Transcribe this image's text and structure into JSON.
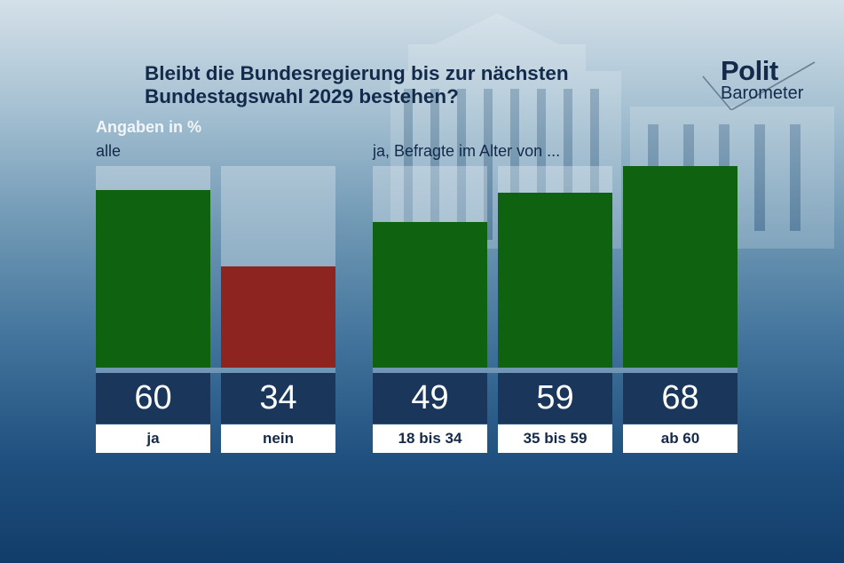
{
  "title_line1": "Bleibt die Bundesregierung bis zur nächsten",
  "title_line2": "Bundestagswahl 2029 bestehen?",
  "units_label": "Angaben in %",
  "logo": {
    "line1": "Polit",
    "line2": "Barometer"
  },
  "colors": {
    "green": "#0e6210",
    "red": "#8e2420",
    "navy": "#1a365b"
  },
  "chart_data": [
    {
      "type": "bar",
      "title": "alle",
      "categories": [
        "ja",
        "nein"
      ],
      "values": [
        60,
        34
      ],
      "value_labels": [
        "60",
        "34"
      ],
      "colors": [
        "#0e6210",
        "#8e2420"
      ],
      "ylim": [
        0,
        68
      ]
    },
    {
      "type": "bar",
      "title": "ja, Befragte im Alter von ...",
      "categories": [
        "18 bis 34",
        "35 bis 59",
        "ab 60"
      ],
      "values": [
        49,
        59,
        68
      ],
      "value_labels": [
        "49",
        "59",
        "68"
      ],
      "colors": [
        "#0e6210",
        "#0e6210",
        "#0e6210"
      ],
      "ylim": [
        0,
        68
      ]
    }
  ]
}
